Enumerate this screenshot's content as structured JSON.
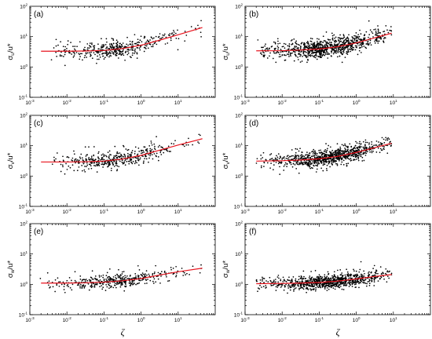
{
  "figure": {
    "x_axis_label": "ζ",
    "colors": {
      "points": "#000000",
      "fit_line": "#e8141e",
      "frame": "#000000"
    }
  },
  "chart_data": [
    {
      "type": "scatter",
      "panel_label": "(a)",
      "ylabel": "σu/u*",
      "ylabel_main": "σ",
      "ylabel_sub": "u",
      "ylabel_tail": "/u*",
      "x_scale": "log",
      "y_scale": "log",
      "xlim": [
        0.001,
        100
      ],
      "ylim": [
        0.1,
        100
      ],
      "x_ticks": [
        "10-3",
        "10-2",
        "10-1",
        "100",
        "101"
      ],
      "y_ticks": [
        "10-1",
        "100",
        "101",
        "102"
      ],
      "scatter_summary": {
        "n_points": 420,
        "x_range": [
          0.003,
          45
        ],
        "center_y": 3.6
      },
      "fit_line": {
        "x": [
          0.002,
          0.01,
          0.03,
          0.1,
          0.3,
          1,
          3,
          10,
          45
        ],
        "y": [
          3.3,
          3.3,
          3.35,
          3.5,
          4.0,
          5.2,
          7.5,
          11.5,
          20
        ]
      }
    },
    {
      "type": "scatter",
      "panel_label": "(b)",
      "ylabel": "σu/u*",
      "ylabel_main": "σ",
      "ylabel_sub": "u",
      "ylabel_tail": "/u*",
      "x_scale": "log",
      "y_scale": "log",
      "xlim": [
        0.001,
        100
      ],
      "ylim": [
        0.1,
        100
      ],
      "x_ticks": [
        "10-3",
        "10-2",
        "10-1",
        "100",
        "101"
      ],
      "y_ticks": [
        "10-1",
        "100",
        "101",
        "102"
      ],
      "scatter_summary": {
        "n_points": 900,
        "x_range": [
          0.002,
          9
        ],
        "center_y": 4.0
      },
      "fit_line": {
        "x": [
          0.002,
          0.01,
          0.03,
          0.1,
          0.3,
          1,
          3,
          9
        ],
        "y": [
          3.4,
          3.45,
          3.6,
          3.9,
          4.6,
          6.2,
          9.0,
          13
        ]
      }
    },
    {
      "type": "scatter",
      "panel_label": "(c)",
      "ylabel": "σv/u*",
      "ylabel_main": "σ",
      "ylabel_sub": "v",
      "ylabel_tail": "/u*",
      "x_scale": "log",
      "y_scale": "log",
      "xlim": [
        0.001,
        100
      ],
      "ylim": [
        0.1,
        100
      ],
      "x_ticks": [
        "10-3",
        "10-2",
        "10-1",
        "100",
        "101"
      ],
      "y_ticks": [
        "10-1",
        "100",
        "101",
        "102"
      ],
      "scatter_summary": {
        "n_points": 420,
        "x_range": [
          0.003,
          45
        ],
        "center_y": 3.2
      },
      "fit_line": {
        "x": [
          0.002,
          0.01,
          0.03,
          0.1,
          0.3,
          1,
          3,
          10,
          45
        ],
        "y": [
          2.9,
          2.9,
          2.95,
          3.1,
          3.6,
          4.8,
          7.0,
          10.5,
          17
        ]
      }
    },
    {
      "type": "scatter",
      "panel_label": "(d)",
      "ylabel": "σv/u*",
      "ylabel_main": "σ",
      "ylabel_sub": "v",
      "ylabel_tail": "/u*",
      "x_scale": "log",
      "y_scale": "log",
      "xlim": [
        0.001,
        100
      ],
      "ylim": [
        0.1,
        100
      ],
      "x_ticks": [
        "10-3",
        "10-2",
        "10-1",
        "100",
        "101"
      ],
      "y_ticks": [
        "10-1",
        "100",
        "101",
        "102"
      ],
      "scatter_summary": {
        "n_points": 900,
        "x_range": [
          0.002,
          9
        ],
        "center_y": 3.8
      },
      "fit_line": {
        "x": [
          0.002,
          0.01,
          0.03,
          0.1,
          0.3,
          1,
          3,
          9
        ],
        "y": [
          3.1,
          3.2,
          3.35,
          3.7,
          4.4,
          6.0,
          8.5,
          12
        ]
      }
    },
    {
      "type": "scatter",
      "panel_label": "(e)",
      "ylabel": "σw/u*",
      "ylabel_main": "σ",
      "ylabel_sub": "w",
      "ylabel_tail": "/u*",
      "x_scale": "log",
      "y_scale": "log",
      "xlim": [
        0.001,
        100
      ],
      "ylim": [
        0.1,
        100
      ],
      "x_ticks": [
        "10-3",
        "10-2",
        "10-1",
        "100",
        "101"
      ],
      "y_ticks": [
        "10-1",
        "100",
        "101",
        "102"
      ],
      "scatter_summary": {
        "n_points": 420,
        "x_range": [
          0.001,
          45
        ],
        "center_y": 1.2
      },
      "fit_line": {
        "x": [
          0.002,
          0.01,
          0.03,
          0.1,
          0.3,
          1,
          3,
          10,
          45
        ],
        "y": [
          1.1,
          1.1,
          1.12,
          1.18,
          1.3,
          1.55,
          2.0,
          2.6,
          3.4
        ]
      }
    },
    {
      "type": "scatter",
      "panel_label": "(f)",
      "ylabel": "σw/u*",
      "ylabel_main": "σ",
      "ylabel_sub": "w",
      "ylabel_tail": "/u*",
      "x_scale": "log",
      "y_scale": "log",
      "xlim": [
        0.001,
        100
      ],
      "ylim": [
        0.1,
        100
      ],
      "x_ticks": [
        "10-3",
        "10-2",
        "10-1",
        "100",
        "101"
      ],
      "y_ticks": [
        "10-1",
        "100",
        "101",
        "102"
      ],
      "scatter_summary": {
        "n_points": 900,
        "x_range": [
          0.002,
          9
        ],
        "center_y": 1.2
      },
      "fit_line": {
        "x": [
          0.002,
          0.01,
          0.03,
          0.1,
          0.3,
          1,
          3,
          9
        ],
        "y": [
          1.05,
          1.07,
          1.1,
          1.15,
          1.27,
          1.5,
          1.8,
          2.1
        ]
      }
    }
  ]
}
